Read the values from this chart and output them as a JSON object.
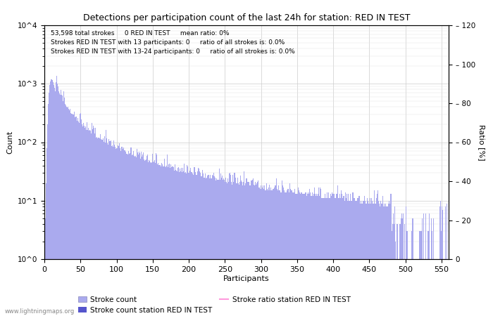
{
  "title": "Detections per participation count of the last 24h for station: RED IN TEST",
  "xlabel": "Participants",
  "ylabel_left": "Count",
  "ylabel_right": "Ratio [%]",
  "annotation_lines": [
    "53,598 total strokes     0 RED IN TEST     mean ratio: 0%",
    "Strokes RED IN TEST with 13 participants: 0     ratio of all strokes is: 0.0%",
    "Strokes RED IN TEST with 13-24 participants: 0     ratio of all strokes is: 0.0%"
  ],
  "watermark": "www.lightningmaps.org",
  "bar_color_light": "#aaaaee",
  "bar_color_dark": "#5555cc",
  "line_color": "#ff99dd",
  "xlim": [
    0,
    560
  ],
  "ylim_log": [
    1,
    10000
  ],
  "ylim_right": [
    0,
    120
  ],
  "yticks_right": [
    0,
    20,
    40,
    60,
    80,
    100,
    120
  ],
  "xticks": [
    0,
    50,
    100,
    150,
    200,
    250,
    300,
    350,
    400,
    450,
    500,
    550
  ],
  "yticks_log": [
    1,
    10,
    100,
    1000,
    10000
  ],
  "ytick_labels_log": [
    "10^0",
    "10^1",
    "10^2",
    "10^3",
    "10^4"
  ],
  "legend_labels": [
    "Stroke count",
    "Stroke count station RED IN TEST",
    "Stroke ratio station RED IN TEST"
  ]
}
